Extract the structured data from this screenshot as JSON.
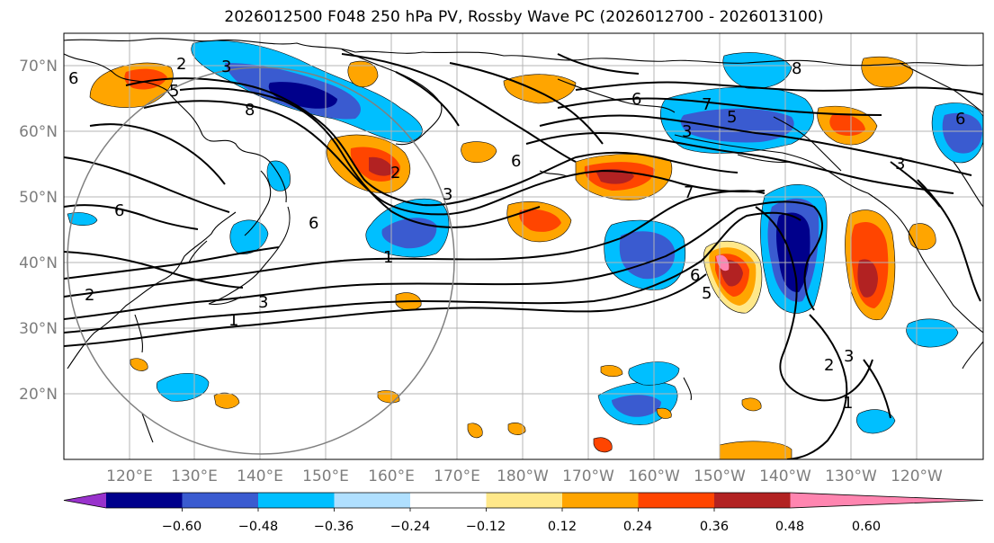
{
  "title": "2026012500 F048 250 hPa PV, Rossby Wave PC (2026012700 - 2026013100)",
  "latitude_labels": [
    "70°N",
    "60°N",
    "50°N",
    "40°N",
    "30°N",
    "20°N"
  ],
  "longitude_labels": [
    "120°E",
    "130°E",
    "140°E",
    "150°E",
    "160°E",
    "170°E",
    "180°W",
    "170°W",
    "160°W",
    "150°W",
    "140°W",
    "130°W",
    "120°W"
  ],
  "colorbar": {
    "tick_labels": [
      "−0.60",
      "−0.48",
      "−0.36",
      "−0.24",
      "−0.12",
      "0.12",
      "0.24",
      "0.36",
      "0.48",
      "0.60"
    ],
    "colors": [
      "#9932cc",
      "#00008b",
      "#3a5bd0",
      "#00bfff",
      "#b0e0ff",
      "#ffffff",
      "#ffe88a",
      "#ffa500",
      "#ff4500",
      "#b22222",
      "#ff85b0"
    ]
  },
  "contour_labels": [
    "2",
    "3",
    "5",
    "6",
    "8",
    "6",
    "2",
    "3",
    "6",
    "1",
    "2",
    "3",
    "1",
    "6",
    "6",
    "7",
    "5",
    "8",
    "3",
    "3",
    "7",
    "6",
    "5",
    "2",
    "3",
    "1",
    "6"
  ],
  "colors": {
    "coastline": "#000000",
    "grid": "#b4b4b4",
    "contour": "#000000",
    "circle": "#808080"
  }
}
